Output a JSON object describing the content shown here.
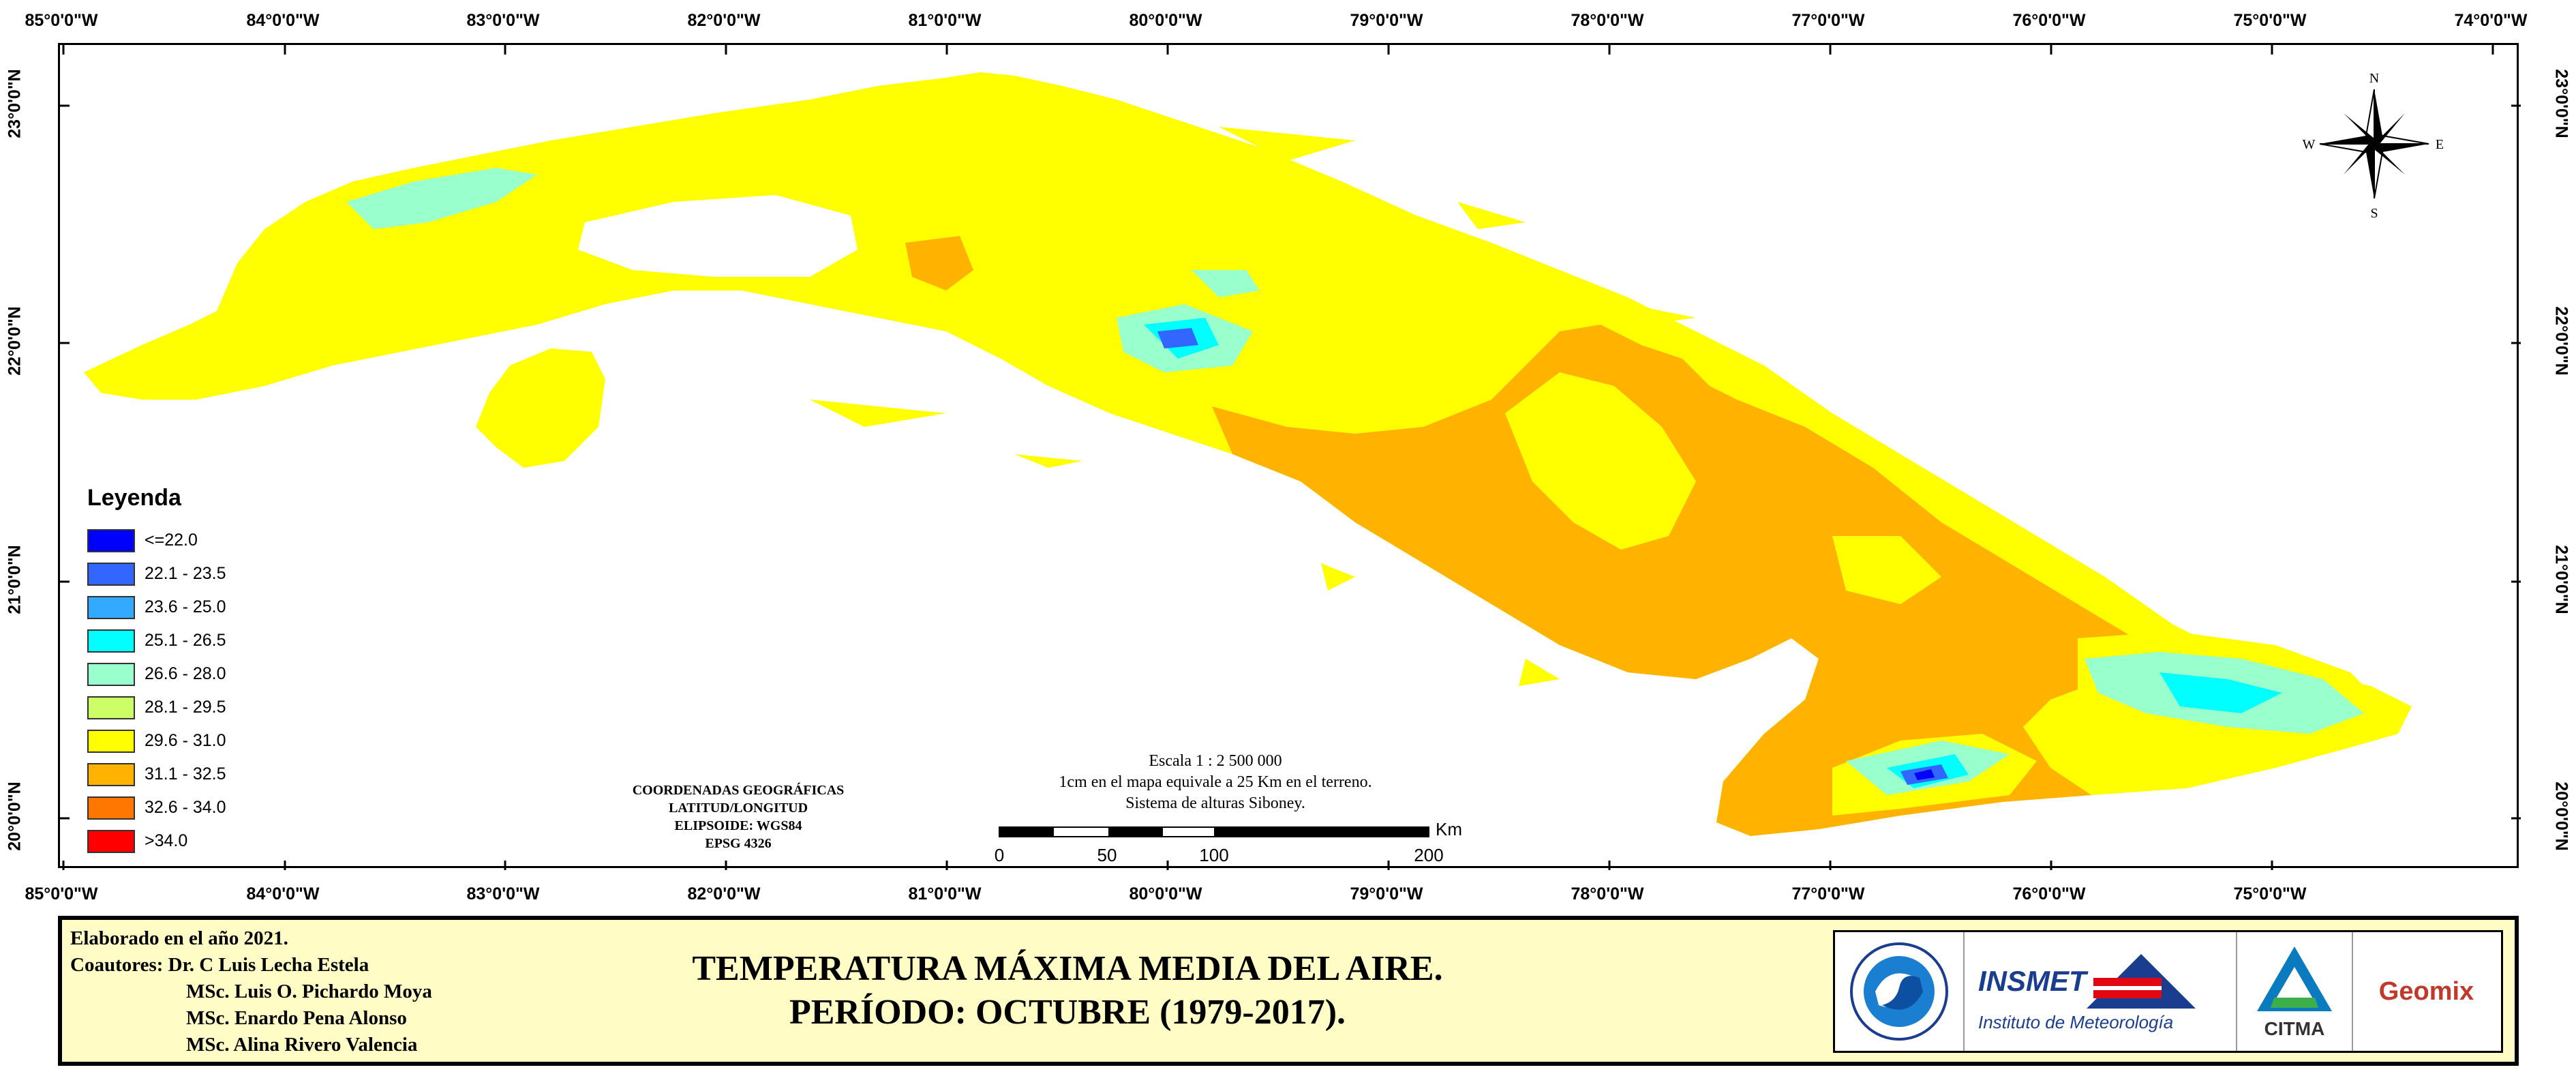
{
  "coordinates": {
    "longitudes": [
      "85°0'0\"W",
      "84°0'0\"W",
      "83°0'0\"W",
      "82°0'0\"W",
      "81°0'0\"W",
      "80°0'0\"W",
      "79°0'0\"W",
      "78°0'0\"W",
      "77°0'0\"W",
      "76°0'0\"W",
      "75°0'0\"W",
      "74°0'0\"W"
    ],
    "latitudes": [
      "23°0'0\"N",
      "22°0'0\"N",
      "21°0'0\"N",
      "20°0'0\"N"
    ]
  },
  "compass": {
    "n": "N",
    "s": "S",
    "e": "E",
    "w": "W"
  },
  "legend": {
    "title": "Leyenda",
    "items": [
      {
        "label": "<=22.0",
        "color": "#0000ff"
      },
      {
        "label": "22.1 - 23.5",
        "color": "#3366ff"
      },
      {
        "label": "23.6 - 25.0",
        "color": "#33aaff"
      },
      {
        "label": "25.1 - 26.5",
        "color": "#00ffff"
      },
      {
        "label": "26.6 - 28.0",
        "color": "#99ffcc"
      },
      {
        "label": "28.1 - 29.5",
        "color": "#ccff66"
      },
      {
        "label": "29.6 - 31.0",
        "color": "#ffff00"
      },
      {
        "label": "31.1 - 32.5",
        "color": "#ffb300"
      },
      {
        "label": "32.6 - 34.0",
        "color": "#ff7700"
      },
      {
        "label": ">34.0",
        "color": "#ff0000"
      }
    ]
  },
  "coordinate_system": {
    "line1": "COORDENADAS GEOGRÁFICAS",
    "line2": "LATITUD/LONGITUD",
    "line3": "ELIPSOIDE: WGS84",
    "line4": "EPSG 4326"
  },
  "scale": {
    "line1": "Escala 1 : 2 500 000",
    "line2": "1cm en el mapa equivale a 25 Km en el terreno.",
    "line3": "Sistema de alturas Siboney.",
    "ticks": [
      "0",
      "50",
      "100",
      "200"
    ],
    "unit": "Km"
  },
  "footer": {
    "elaborated": "Elaborado en el año 2021.",
    "coauthors_label": "Coautores:",
    "coauthors": [
      "Dr. C Luis Lecha Estela",
      "MSc. Luis O. Pichardo Moya",
      "MSc. Enardo Pena Alonso",
      "MSc. Alina Rivero Valencia"
    ],
    "title_line1": "TEMPERATURA MÁXIMA MEDIA DEL AIRE.",
    "title_line2": "PERÍODO: OCTUBRE (1979-2017)."
  },
  "logos": {
    "insmet": "INSMET",
    "insmet_sub": "Instituto de Meteorología",
    "citma": "CITMA",
    "geomix": "Geomix"
  }
}
